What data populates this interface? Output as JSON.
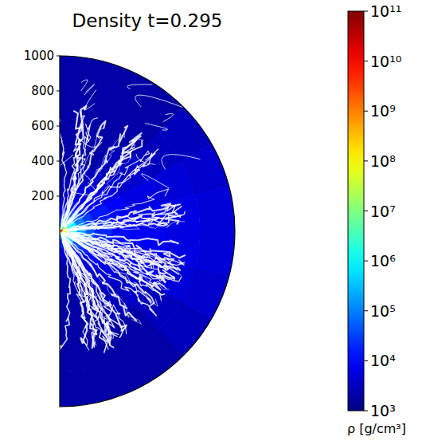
{
  "chart_data": {
    "type": "heatmap",
    "title": "Density t=0.295",
    "log": true,
    "tick_labels": "y",
    "xlim": [
      0,
      1000
    ],
    "ylim": [
      -1000,
      1000
    ],
    "yticks": [
      200,
      400,
      600,
      800,
      1000
    ],
    "cells": {
      "r_edges": [
        0,
        20,
        50,
        100,
        150,
        200,
        300,
        400,
        600,
        800,
        1000
      ],
      "theta_edges": [
        0,
        15,
        30,
        45,
        60,
        75,
        90,
        105,
        120,
        135,
        150,
        165,
        180
      ],
      "values": [
        [
          1000000.0,
          100000.0,
          30000.0,
          10000.0,
          5000.0,
          3000.0,
          2000.0,
          2000.0,
          2000.0,
          2000.0
        ],
        [
          30000000.0,
          1000000.0,
          100000.0,
          20000.0,
          10000.0,
          5000.0,
          3000.0,
          2000.0,
          2000.0,
          2000.0
        ],
        [
          100000000.0,
          3000000.0,
          200000.0,
          30000.0,
          10000.0,
          6000.0,
          4000.0,
          3000.0,
          2000.0,
          2000.0
        ],
        [
          1000000000.0,
          10000000.0,
          500000.0,
          50000.0,
          20000.0,
          10000.0,
          6000.0,
          4000.0,
          3000.0,
          3000.0
        ],
        [
          3000000000.0,
          30000000.0,
          1000000.0,
          100000.0,
          30000.0,
          15000.0,
          10000.0,
          6000.0,
          5000.0,
          4000.0
        ],
        [
          10000000000.0,
          100000000.0,
          2000000.0,
          200000.0,
          50000.0,
          20000.0,
          10000.0,
          8000.0,
          6000.0,
          5000.0
        ],
        [
          10000000000.0,
          100000000.0,
          2000000.0,
          200000.0,
          50000.0,
          20000.0,
          12000.0,
          8000.0,
          6000.0,
          5000.0
        ],
        [
          3000000000.0,
          30000000.0,
          1000000.0,
          100000.0,
          30000.0,
          15000.0,
          10000.0,
          7000.0,
          5000.0,
          4000.0
        ],
        [
          1000000000.0,
          10000000.0,
          500000.0,
          40000.0,
          20000.0,
          10000.0,
          6000.0,
          4000.0,
          3000.0,
          3000.0
        ],
        [
          100000000.0,
          3000000.0,
          100000.0,
          20000.0,
          10000.0,
          5000.0,
          4000.0,
          3000.0,
          2000.0,
          2000.0
        ],
        [
          30000000.0,
          1000000.0,
          50000.0,
          10000.0,
          5000.0,
          3000.0,
          2000.0,
          2000.0,
          2000.0,
          2000.0
        ],
        [
          1000000.0,
          100000.0,
          20000.0,
          6000.0,
          3000.0,
          2000.0,
          2000.0,
          2000.0,
          2000.0,
          2000.0
        ]
      ]
    },
    "colorbar": {
      "label": "ρ [g/cm³]",
      "range": [
        1000,
        100000000000
      ],
      "ticks": [
        {
          "value": 1000,
          "label": "10³"
        },
        {
          "value": 10000,
          "label": "10⁴"
        },
        {
          "value": 100000,
          "label": "10⁵"
        },
        {
          "value": 1000000,
          "label": "10⁶"
        },
        {
          "value": 10000000,
          "label": "10⁷"
        },
        {
          "value": 100000000,
          "label": "10⁸"
        },
        {
          "value": 1000000000,
          "label": "10⁹"
        },
        {
          "value": 10000000000,
          "label": "10¹⁰"
        },
        {
          "value": 100000000000,
          "label": "10¹¹"
        }
      ]
    }
  }
}
